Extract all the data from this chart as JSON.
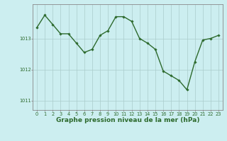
{
  "x": [
    0,
    1,
    2,
    3,
    4,
    5,
    6,
    7,
    8,
    9,
    10,
    11,
    12,
    13,
    14,
    15,
    16,
    17,
    18,
    19,
    20,
    21,
    22,
    23
  ],
  "y": [
    1013.35,
    1013.75,
    1013.45,
    1013.15,
    1013.15,
    1012.85,
    1012.55,
    1012.65,
    1013.1,
    1013.25,
    1013.7,
    1013.7,
    1013.55,
    1013.0,
    1012.85,
    1012.65,
    1011.95,
    1011.8,
    1011.65,
    1011.35,
    1012.25,
    1012.95,
    1013.0,
    1013.1
  ],
  "line_color": "#2d6a2d",
  "marker": "D",
  "marker_size": 1.8,
  "background_color": "#cceef0",
  "grid_color": "#aacccc",
  "ylim": [
    1010.7,
    1014.1
  ],
  "xlim": [
    -0.5,
    23.5
  ],
  "yticks": [
    1011,
    1012,
    1013
  ],
  "xticks": [
    0,
    1,
    2,
    3,
    4,
    5,
    6,
    7,
    8,
    9,
    10,
    11,
    12,
    13,
    14,
    15,
    16,
    17,
    18,
    19,
    20,
    21,
    22,
    23
  ],
  "xlabel": "Graphe pression niveau de la mer (hPa)",
  "tick_fontsize": 4.8,
  "label_fontsize": 6.5,
  "linewidth": 1.0,
  "axis_color": "#888888"
}
